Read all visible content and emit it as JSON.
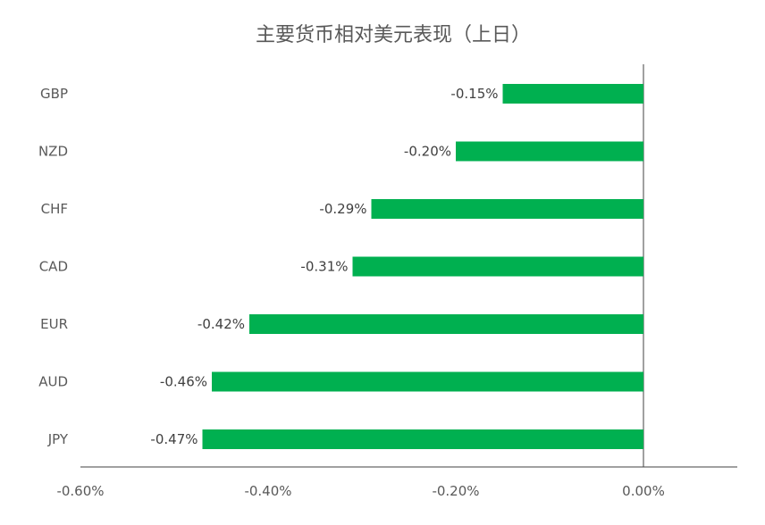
{
  "chart_data": {
    "type": "bar",
    "orientation": "horizontal",
    "title": "主要货币相对美元表现（上日）",
    "categories": [
      "GBP",
      "NZD",
      "CHF",
      "CAD",
      "EUR",
      "AUD",
      "JPY"
    ],
    "values": [
      -0.15,
      -0.2,
      -0.29,
      -0.31,
      -0.42,
      -0.46,
      -0.47
    ],
    "data_labels": [
      "-0.15%",
      "-0.20%",
      "-0.29%",
      "-0.31%",
      "-0.42%",
      "-0.46%",
      "-0.47%"
    ],
    "xlim": [
      -0.6,
      0.1
    ],
    "x_ticks": [
      -0.6,
      -0.4,
      -0.2,
      0.0
    ],
    "x_tick_labels": [
      "-0.60%",
      "-0.40%",
      "-0.20%",
      "0.00%"
    ],
    "xlabel": "",
    "ylabel": "",
    "bar_color": "#00b050",
    "legend": "none",
    "grid": false
  }
}
